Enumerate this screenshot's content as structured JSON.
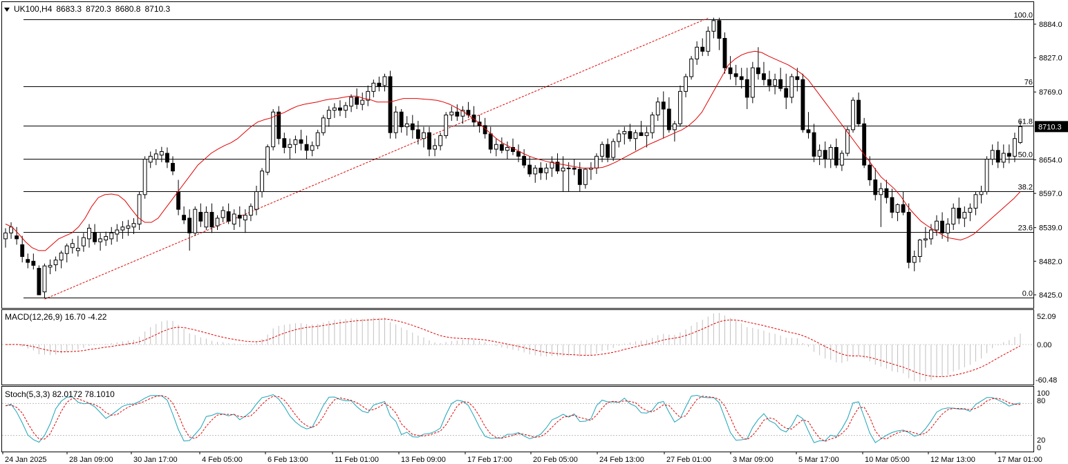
{
  "header": {
    "symbol": "UK100,H4",
    "open": "8683.3",
    "high": "8720.3",
    "low": "8680.8",
    "close": "8710.3"
  },
  "price_labels": [
    "8884.0",
    "8827.0",
    "8769.0",
    "8654.0",
    "8597.0",
    "8539.0",
    "8482.0",
    "8425.0"
  ],
  "current_price": "8710.3",
  "fib_levels": [
    {
      "label": "100.0",
      "value": 100.0
    },
    {
      "label": "76",
      "value": 76
    },
    {
      "label": "61.8",
      "value": 61.8
    },
    {
      "label": "50.0",
      "value": 50.0
    },
    {
      "label": "38.2",
      "value": 38.2
    },
    {
      "label": "23.6",
      "value": 23.6
    },
    {
      "label": "0.0",
      "value": 0.0
    }
  ],
  "x_labels": [
    "24 Jan 2025",
    "28 Jan 09:00",
    "30 Jan 17:00",
    "4 Feb 05:00",
    "6 Feb 13:00",
    "11 Feb 01:00",
    "13 Feb 09:00",
    "17 Feb 17:00",
    "20 Feb 05:00",
    "24 Feb 13:00",
    "27 Feb 01:00",
    "3 Mar 09:00",
    "5 Mar 17:00",
    "10 Mar 05:00",
    "12 Mar 13:00",
    "17 Mar 01:00"
  ],
  "macd": {
    "title": "MACD(12,26,9) 16.70 -4.22",
    "labels": [
      "52.09",
      "0.00",
      "-60.48"
    ]
  },
  "stoch": {
    "title": "Stoch(5,3,3) 82.0172 78.1010",
    "labels": [
      "100",
      "80",
      "20",
      "0"
    ]
  },
  "colors": {
    "bull": "#ffffff",
    "bear": "#000000",
    "ma": "#e00000",
    "stoch_k": "#1ba3b8",
    "stoch_d": "#e00000",
    "macd_hist": "#c0c0c0",
    "grid": "#000000"
  },
  "chart_data": {
    "type": "candlestick",
    "symbol": "UK100",
    "timeframe": "H4",
    "ylim": [
      8405,
      8910
    ],
    "fib_high": 8892,
    "fib_low": 8420,
    "overlay": "moving-average",
    "indicators": [
      "MACD(12,26,9)",
      "Stoch(5,3,3)"
    ],
    "candles": [
      [
        8520,
        8538,
        8505,
        8530
      ],
      [
        8530,
        8548,
        8520,
        8540
      ],
      [
        8525,
        8540,
        8510,
        8520
      ],
      [
        8510,
        8525,
        8480,
        8490
      ],
      [
        8485,
        8495,
        8470,
        8480
      ],
      [
        8482,
        8495,
        8468,
        8475
      ],
      [
        8470,
        8475,
        8425,
        8425
      ],
      [
        8430,
        8478,
        8420,
        8474
      ],
      [
        8472,
        8485,
        8460,
        8475
      ],
      [
        8476,
        8490,
        8465,
        8484
      ],
      [
        8484,
        8500,
        8470,
        8496
      ],
      [
        8495,
        8512,
        8480,
        8508
      ],
      [
        8505,
        8520,
        8495,
        8512
      ],
      [
        8500,
        8525,
        8490,
        8504
      ],
      [
        8508,
        8530,
        8498,
        8522
      ],
      [
        8520,
        8545,
        8505,
        8538
      ],
      [
        8530,
        8545,
        8510,
        8515
      ],
      [
        8515,
        8530,
        8500,
        8520
      ],
      [
        8518,
        8532,
        8508,
        8524
      ],
      [
        8520,
        8540,
        8510,
        8530
      ],
      [
        8528,
        8545,
        8515,
        8535
      ],
      [
        8535,
        8550,
        8520,
        8540
      ],
      [
        8538,
        8552,
        8525,
        8542
      ],
      [
        8540,
        8555,
        8528,
        8546
      ],
      [
        8545,
        8600,
        8535,
        8595
      ],
      [
        8595,
        8660,
        8588,
        8655
      ],
      [
        8650,
        8668,
        8640,
        8660
      ],
      [
        8655,
        8672,
        8645,
        8664
      ],
      [
        8662,
        8676,
        8650,
        8668
      ],
      [
        8665,
        8675,
        8640,
        8650
      ],
      [
        8648,
        8660,
        8628,
        8635
      ],
      [
        8600,
        8620,
        8560,
        8570
      ],
      [
        8560,
        8575,
        8545,
        8552
      ],
      [
        8555,
        8570,
        8500,
        8530
      ],
      [
        8530,
        8575,
        8525,
        8570
      ],
      [
        8565,
        8580,
        8540,
        8550
      ],
      [
        8540,
        8575,
        8535,
        8565
      ],
      [
        8565,
        8580,
        8530,
        8540
      ],
      [
        8542,
        8560,
        8535,
        8555
      ],
      [
        8556,
        8575,
        8548,
        8568
      ],
      [
        8566,
        8580,
        8545,
        8550
      ],
      [
        8545,
        8570,
        8535,
        8562
      ],
      [
        8560,
        8575,
        8540,
        8555
      ],
      [
        8552,
        8570,
        8530,
        8560
      ],
      [
        8560,
        8580,
        8550,
        8575
      ],
      [
        8570,
        8610,
        8560,
        8600
      ],
      [
        8600,
        8640,
        8590,
        8635
      ],
      [
        8633,
        8680,
        8628,
        8676
      ],
      [
        8676,
        8740,
        8670,
        8735
      ],
      [
        8735,
        8745,
        8680,
        8690
      ],
      [
        8690,
        8700,
        8665,
        8675
      ],
      [
        8675,
        8690,
        8655,
        8680
      ],
      [
        8680,
        8695,
        8665,
        8688
      ],
      [
        8688,
        8705,
        8670,
        8682
      ],
      [
        8680,
        8695,
        8655,
        8670
      ],
      [
        8670,
        8685,
        8660,
        8678
      ],
      [
        8678,
        8705,
        8672,
        8700
      ],
      [
        8700,
        8730,
        8695,
        8725
      ],
      [
        8724,
        8745,
        8710,
        8738
      ],
      [
        8738,
        8750,
        8725,
        8742
      ],
      [
        8742,
        8755,
        8728,
        8738
      ],
      [
        8738,
        8752,
        8725,
        8746
      ],
      [
        8745,
        8765,
        8735,
        8760
      ],
      [
        8760,
        8775,
        8740,
        8748
      ],
      [
        8748,
        8768,
        8738,
        8755
      ],
      [
        8755,
        8780,
        8745,
        8770
      ],
      [
        8770,
        8790,
        8760,
        8784
      ],
      [
        8784,
        8795,
        8770,
        8778
      ],
      [
        8780,
        8800,
        8770,
        8795
      ],
      [
        8795,
        8805,
        8690,
        8700
      ],
      [
        8700,
        8745,
        8690,
        8735
      ],
      [
        8735,
        8740,
        8700,
        8710
      ],
      [
        8710,
        8728,
        8695,
        8715
      ],
      [
        8715,
        8730,
        8690,
        8705
      ],
      [
        8705,
        8720,
        8680,
        8690
      ],
      [
        8690,
        8710,
        8675,
        8700
      ],
      [
        8700,
        8710,
        8660,
        8672
      ],
      [
        8672,
        8690,
        8660,
        8678
      ],
      [
        8678,
        8700,
        8670,
        8695
      ],
      [
        8695,
        8735,
        8690,
        8730
      ],
      [
        8730,
        8745,
        8720,
        8735
      ],
      [
        8735,
        8748,
        8720,
        8728
      ],
      [
        8728,
        8745,
        8715,
        8738
      ],
      [
        8738,
        8752,
        8725,
        8730
      ],
      [
        8730,
        8745,
        8710,
        8718
      ],
      [
        8718,
        8730,
        8700,
        8712
      ],
      [
        8712,
        8725,
        8690,
        8698
      ],
      [
        8698,
        8710,
        8665,
        8672
      ],
      [
        8672,
        8690,
        8660,
        8680
      ],
      [
        8680,
        8692,
        8665,
        8670
      ],
      [
        8670,
        8685,
        8655,
        8675
      ],
      [
        8675,
        8690,
        8662,
        8668
      ],
      [
        8668,
        8680,
        8650,
        8660
      ],
      [
        8660,
        8672,
        8640,
        8645
      ],
      [
        8645,
        8660,
        8625,
        8630
      ],
      [
        8630,
        8645,
        8615,
        8640
      ],
      [
        8640,
        8650,
        8620,
        8632
      ],
      [
        8632,
        8648,
        8620,
        8640
      ],
      [
        8640,
        8660,
        8625,
        8650
      ],
      [
        8650,
        8665,
        8630,
        8635
      ],
      [
        8635,
        8660,
        8600,
        8640
      ],
      [
        8640,
        8650,
        8600,
        8640
      ],
      [
        8640,
        8655,
        8628,
        8638
      ],
      [
        8638,
        8650,
        8600,
        8612
      ],
      [
        8612,
        8640,
        8605,
        8638
      ],
      [
        8638,
        8650,
        8620,
        8640
      ],
      [
        8640,
        8665,
        8630,
        8660
      ],
      [
        8660,
        8685,
        8650,
        8680
      ],
      [
        8680,
        8690,
        8650,
        8658
      ],
      [
        8658,
        8690,
        8652,
        8685
      ],
      [
        8685,
        8705,
        8675,
        8698
      ],
      [
        8698,
        8710,
        8680,
        8702
      ],
      [
        8702,
        8715,
        8685,
        8690
      ],
      [
        8690,
        8705,
        8670,
        8700
      ],
      [
        8700,
        8720,
        8695,
        8695
      ],
      [
        8695,
        8710,
        8675,
        8700
      ],
      [
        8700,
        8735,
        8690,
        8730
      ],
      [
        8730,
        8760,
        8720,
        8752
      ],
      [
        8752,
        8770,
        8690,
        8740
      ],
      [
        8740,
        8760,
        8700,
        8705
      ],
      [
        8705,
        8720,
        8685,
        8715
      ],
      [
        8715,
        8780,
        8710,
        8770
      ],
      [
        8770,
        8800,
        8760,
        8795
      ],
      [
        8795,
        8830,
        8790,
        8825
      ],
      [
        8825,
        8855,
        8815,
        8845
      ],
      [
        8845,
        8860,
        8830,
        8838
      ],
      [
        8838,
        8880,
        8830,
        8872
      ],
      [
        8872,
        8895,
        8860,
        8890
      ],
      [
        8890,
        8895,
        8840,
        8860
      ],
      [
        8860,
        8870,
        8800,
        8810
      ],
      [
        8810,
        8830,
        8790,
        8800
      ],
      [
        8800,
        8815,
        8780,
        8795
      ],
      [
        8795,
        8810,
        8775,
        8790
      ],
      [
        8790,
        8810,
        8740,
        8760
      ],
      [
        8760,
        8820,
        8750,
        8810
      ],
      [
        8810,
        8845,
        8790,
        8800
      ],
      [
        8800,
        8820,
        8780,
        8790
      ],
      [
        8790,
        8805,
        8770,
        8780
      ],
      [
        8780,
        8800,
        8765,
        8790
      ],
      [
        8790,
        8810,
        8770,
        8775
      ],
      [
        8775,
        8800,
        8740,
        8760
      ],
      [
        8760,
        8800,
        8750,
        8795
      ],
      [
        8795,
        8810,
        8770,
        8790
      ],
      [
        8790,
        8800,
        8700,
        8705
      ],
      [
        8705,
        8735,
        8690,
        8700
      ],
      [
        8700,
        8715,
        8650,
        8660
      ],
      [
        8660,
        8680,
        8645,
        8670
      ],
      [
        8670,
        8685,
        8640,
        8655
      ],
      [
        8655,
        8680,
        8640,
        8675
      ],
      [
        8675,
        8690,
        8640,
        8645
      ],
      [
        8645,
        8670,
        8635,
        8665
      ],
      [
        8665,
        8710,
        8660,
        8705
      ],
      [
        8705,
        8760,
        8700,
        8755
      ],
      [
        8755,
        8768,
        8710,
        8715
      ],
      [
        8715,
        8725,
        8640,
        8645
      ],
      [
        8645,
        8660,
        8610,
        8620
      ],
      [
        8620,
        8640,
        8585,
        8595
      ],
      [
        8595,
        8615,
        8540,
        8605
      ],
      [
        8605,
        8620,
        8580,
        8590
      ],
      [
        8590,
        8605,
        8555,
        8565
      ],
      [
        8565,
        8580,
        8550,
        8578
      ],
      [
        8578,
        8600,
        8560,
        8565
      ],
      [
        8565,
        8580,
        8470,
        8480
      ],
      [
        8480,
        8500,
        8465,
        8490
      ],
      [
        8490,
        8520,
        8480,
        8518
      ],
      [
        8518,
        8540,
        8505,
        8520
      ],
      [
        8520,
        8545,
        8510,
        8535
      ],
      [
        8535,
        8560,
        8525,
        8550
      ],
      [
        8550,
        8565,
        8520,
        8530
      ],
      [
        8530,
        8555,
        8515,
        8545
      ],
      [
        8545,
        8580,
        8535,
        8572
      ],
      [
        8572,
        8590,
        8545,
        8555
      ],
      [
        8555,
        8575,
        8540,
        8565
      ],
      [
        8565,
        8580,
        8550,
        8572
      ],
      [
        8572,
        8600,
        8560,
        8595
      ],
      [
        8595,
        8610,
        8580,
        8600
      ],
      [
        8600,
        8660,
        8595,
        8655
      ],
      [
        8655,
        8680,
        8645,
        8670
      ],
      [
        8670,
        8685,
        8640,
        8650
      ],
      [
        8650,
        8680,
        8640,
        8665
      ],
      [
        8665,
        8680,
        8648,
        8660
      ],
      [
        8660,
        8700,
        8650,
        8690
      ],
      [
        8683.3,
        8720.3,
        8680.8,
        8710.3
      ]
    ],
    "moving_average": [
      8545,
      8540,
      8528,
      8515,
      8505,
      8500,
      8500,
      8510,
      8520,
      8525,
      8530,
      8540,
      8555,
      8575,
      8590,
      8595,
      8596,
      8594,
      8585,
      8570,
      8556,
      8548,
      8548,
      8555,
      8570,
      8585,
      8600,
      8615,
      8630,
      8645,
      8655,
      8665,
      8672,
      8678,
      8683,
      8690,
      8700,
      8710,
      8718,
      8722,
      8725,
      8730,
      8734,
      8740,
      8745,
      8748,
      8750,
      8752,
      8755,
      8757,
      8758,
      8760,
      8762,
      8762,
      8758,
      8756,
      8752,
      8752,
      8752,
      8755,
      8758,
      8758,
      8758,
      8757,
      8756,
      8755,
      8752,
      8748,
      8742,
      8736,
      8728,
      8720,
      8710,
      8700,
      8690,
      8682,
      8676,
      8671,
      8665,
      8660,
      8656,
      8653,
      8650,
      8648,
      8646,
      8644,
      8642,
      8640,
      8640,
      8640,
      8641,
      8645,
      8650,
      8656,
      8662,
      8668,
      8674,
      8680,
      8685,
      8690,
      8695,
      8700,
      8705,
      8712,
      8722,
      8735,
      8755,
      8775,
      8795,
      8815,
      8825,
      8832,
      8836,
      8838,
      8836,
      8830,
      8825,
      8820,
      8815,
      8808,
      8800,
      8790,
      8775,
      8760,
      8745,
      8730,
      8715,
      8700,
      8685,
      8670,
      8655,
      8640,
      8625,
      8615,
      8605,
      8592,
      8575,
      8562,
      8550,
      8542,
      8535,
      8528,
      8522,
      8520,
      8518,
      8522,
      8528,
      8538,
      8548,
      8558,
      8568,
      8578,
      8588,
      8600
    ]
  }
}
